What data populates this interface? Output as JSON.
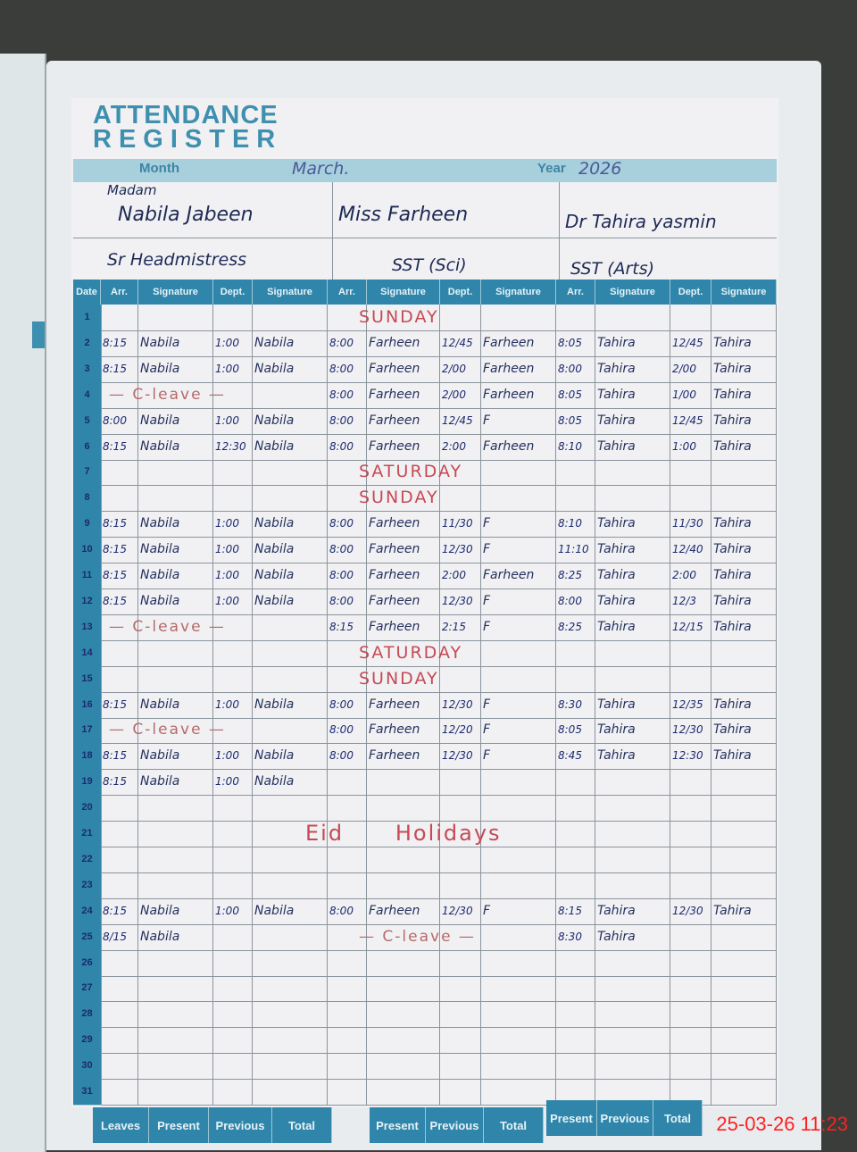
{
  "register": {
    "title_line1": "ATTENDANCE",
    "title_line2": "REGISTER",
    "month_label": "Month",
    "month_value": "March.",
    "year_label": "Year",
    "year_value": "2026"
  },
  "staff": [
    {
      "name_prefix": "Madam",
      "name": "Nabila Jabeen",
      "designation": "Sr Headmistress"
    },
    {
      "name_prefix": "",
      "name": "Miss Farheen",
      "designation": "SST (Sci)"
    },
    {
      "name_prefix": "",
      "name": "Dr Tahira yasmin",
      "designation": "SST (Arts)"
    }
  ],
  "columns": [
    "Date",
    "Arr.",
    "Signature",
    "Dept.",
    "Signature",
    "Arr.",
    "Signature",
    "Dept.",
    "Signature",
    "Arr.",
    "Signature",
    "Dept.",
    "Signature"
  ],
  "rows": [
    {
      "date": "1",
      "note": "SUNDAY"
    },
    {
      "date": "2",
      "cells": [
        "8:15",
        "Nabila",
        "1:00",
        "Nabila",
        "8:00",
        "Farheen",
        "12/45",
        "Farheen",
        "8:05",
        "Tahira",
        "12/45",
        "Tahira"
      ]
    },
    {
      "date": "3",
      "cells": [
        "8:15",
        "Nabila",
        "1:00",
        "Nabila",
        "8:00",
        "Farheen",
        "2/00",
        "Farheen",
        "8:00",
        "Tahira",
        "2/00",
        "Tahira"
      ]
    },
    {
      "date": "4",
      "leave_a": "— C-leave —",
      "cells": [
        "",
        "",
        "",
        "",
        "8:00",
        "Farheen",
        "2/00",
        "Farheen",
        "8:05",
        "Tahira",
        "1/00",
        "Tahira"
      ]
    },
    {
      "date": "5",
      "cells": [
        "8:00",
        "Nabila",
        "1:00",
        "Nabila",
        "8:00",
        "Farheen",
        "12/45",
        "F",
        "8:05",
        "Tahira",
        "12/45",
        "Tahira"
      ]
    },
    {
      "date": "6",
      "cells": [
        "8:15",
        "Nabila",
        "12:30",
        "Nabila",
        "8:00",
        "Farheen",
        "2:00",
        "Farheen",
        "8:10",
        "Tahira",
        "1:00",
        "Tahira"
      ]
    },
    {
      "date": "7",
      "note": "SATURDAY"
    },
    {
      "date": "8",
      "note": "SUNDAY"
    },
    {
      "date": "9",
      "cells": [
        "8:15",
        "Nabila",
        "1:00",
        "Nabila",
        "8:00",
        "Farheen",
        "11/30",
        "F",
        "8:10",
        "Tahira",
        "11/30",
        "Tahira"
      ]
    },
    {
      "date": "10",
      "cells": [
        "8:15",
        "Nabila",
        "1:00",
        "Nabila",
        "8:00",
        "Farheen",
        "12/30",
        "F",
        "11:10",
        "Tahira",
        "12/40",
        "Tahira"
      ]
    },
    {
      "date": "11",
      "cells": [
        "8:15",
        "Nabila",
        "1:00",
        "Nabila",
        "8:00",
        "Farheen",
        "2:00",
        "Farheen",
        "8:25",
        "Tahira",
        "2:00",
        "Tahira"
      ]
    },
    {
      "date": "12",
      "cells": [
        "8:15",
        "Nabila",
        "1:00",
        "Nabila",
        "8:00",
        "Farheen",
        "12/30",
        "F",
        "8:00",
        "Tahira",
        "12/3",
        "Tahira"
      ]
    },
    {
      "date": "13",
      "leave_a": "— C-leave —",
      "cells": [
        "",
        "",
        "",
        "",
        "8:15",
        "Farheen",
        "2:15",
        "F",
        "8:25",
        "Tahira",
        "12/15",
        "Tahira"
      ]
    },
    {
      "date": "14",
      "note": "SATURDAY"
    },
    {
      "date": "15",
      "note": "SUNDAY"
    },
    {
      "date": "16",
      "cells": [
        "8:15",
        "Nabila",
        "1:00",
        "Nabila",
        "8:00",
        "Farheen",
        "12/30",
        "F",
        "8:30",
        "Tahira",
        "12/35",
        "Tahira"
      ]
    },
    {
      "date": "17",
      "leave_a": "— C-leave —",
      "cells": [
        "",
        "",
        "",
        "",
        "8:00",
        "Farheen",
        "12/20",
        "F",
        "8:05",
        "Tahira",
        "12/30",
        "Tahira"
      ]
    },
    {
      "date": "18",
      "cells": [
        "8:15",
        "Nabila",
        "1:00",
        "Nabila",
        "8:00",
        "Farheen",
        "12/30",
        "F",
        "8:45",
        "Tahira",
        "12:30",
        "Tahira"
      ]
    },
    {
      "date": "19",
      "cells": [
        "8:15",
        "Nabila",
        "1:00",
        "Nabila",
        "",
        "",
        "",
        "",
        "",
        "",
        "",
        ""
      ]
    },
    {
      "date": "20"
    },
    {
      "date": "21",
      "note": "Eid      Holidays"
    },
    {
      "date": "22"
    },
    {
      "date": "23"
    },
    {
      "date": "24",
      "cells": [
        "8:15",
        "Nabila",
        "1:00",
        "Nabila",
        "8:00",
        "Farheen",
        "12/30",
        "F",
        "8:15",
        "Tahira",
        "12/30",
        "Tahira"
      ]
    },
    {
      "date": "25",
      "leave_b": "— C-leave —",
      "cells": [
        "8/15",
        "Nabila",
        "",
        "",
        "",
        "",
        "",
        "",
        "8:30",
        "Tahira",
        "",
        ""
      ]
    },
    {
      "date": "26"
    },
    {
      "date": "27"
    },
    {
      "date": "28"
    },
    {
      "date": "29"
    },
    {
      "date": "30"
    },
    {
      "date": "31"
    }
  ],
  "footer": {
    "group_a": [
      "Leaves",
      "Present",
      "Previous",
      "Total"
    ],
    "group_b": [
      "Present",
      "Previous",
      "Total"
    ],
    "group_c": [
      "Present",
      "Previous",
      "Total"
    ]
  },
  "camera_timestamp": "25-03-26  11:23",
  "colors": {
    "header_blue": "#2f86aa",
    "ink_blue": "#24305e",
    "ink_red": "#c64a55",
    "timestamp_red": "#ff2020"
  }
}
